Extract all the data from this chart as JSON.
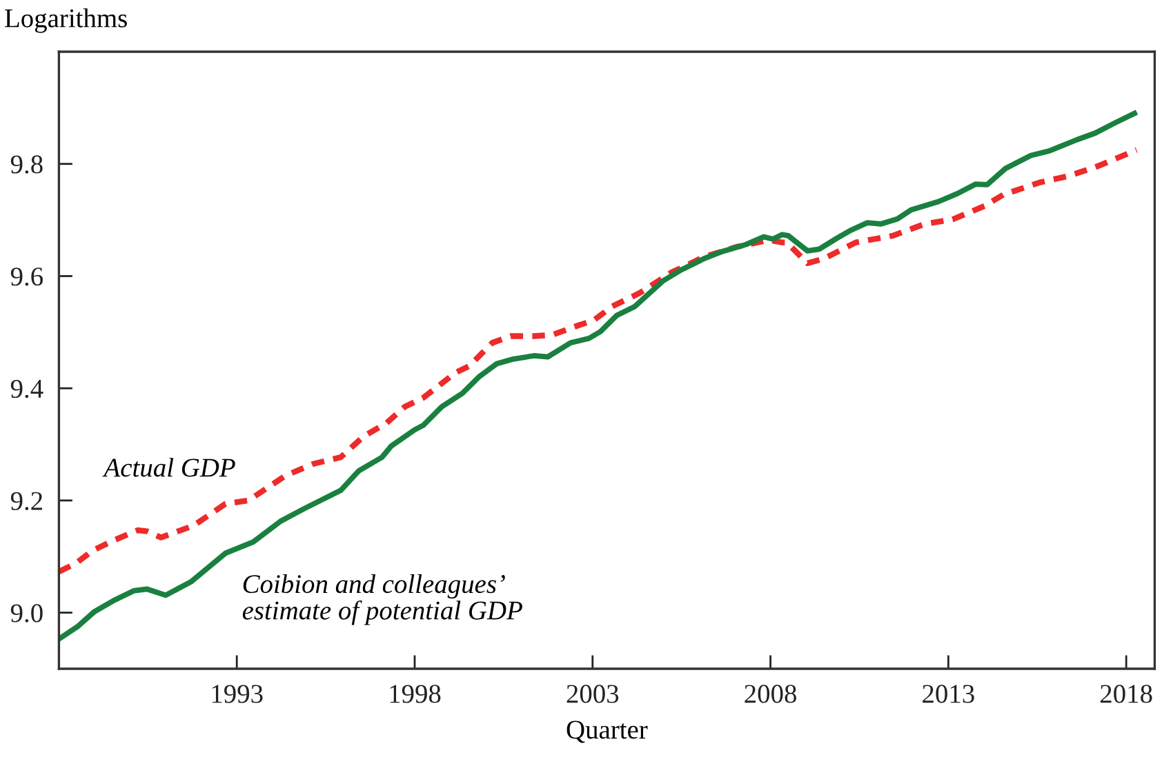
{
  "chart_data": {
    "type": "line",
    "ylabel": "Logarithms",
    "xlabel": "Quarter",
    "xlim": [
      1988,
      2018.8
    ],
    "xticks": [
      1993,
      1998,
      2003,
      2008,
      2013,
      2018
    ],
    "ylim": [
      8.9,
      10.0
    ],
    "yticks": [
      {
        "value": 9.0,
        "label": "9.0"
      },
      9.2,
      9.4,
      9.6,
      9.8
    ],
    "grid": false,
    "legend": false,
    "series": [
      {
        "name": "Actual GDP",
        "color": "#ee2a2a",
        "line_style": "dashed",
        "x": [
          1988.0,
          1988.48,
          1988.93,
          1989.58,
          1990.22,
          1990.48,
          1990.87,
          1991.78,
          1992.68,
          1993.33,
          1994.36,
          1995.14,
          1995.92,
          1996.56,
          1997.21,
          1997.72,
          1998.24,
          1999.15,
          1999.54,
          2000.18,
          2000.7,
          2001.35,
          2001.86,
          2002.64,
          2003.03,
          2003.55,
          2004.33,
          2005.23,
          2006.13,
          2007.04,
          2007.95,
          2008.33,
          2008.46,
          2009.04,
          2009.5,
          2010.4,
          2011.44,
          2012.34,
          2013.12,
          2014.02,
          2014.54,
          2015.57,
          2016.35,
          2017.13,
          2017.77,
          2018.29
        ],
        "values": [
          9.073,
          9.088,
          9.11,
          9.13,
          9.147,
          9.145,
          9.134,
          9.155,
          9.194,
          9.2,
          9.244,
          9.265,
          9.277,
          9.314,
          9.338,
          9.367,
          9.383,
          9.428,
          9.44,
          9.481,
          9.493,
          9.493,
          9.495,
          9.513,
          9.521,
          9.546,
          9.57,
          9.607,
          9.634,
          9.652,
          9.664,
          9.66,
          9.66,
          9.623,
          9.631,
          9.66,
          9.672,
          9.693,
          9.701,
          9.725,
          9.745,
          9.767,
          9.778,
          9.794,
          9.811,
          9.825
        ]
      },
      {
        "name": "Coibion and colleagues’\nestimate of potential GDP",
        "color": "#1a8040",
        "line_style": "solid",
        "x": [
          1988.0,
          1988.54,
          1989.0,
          1989.58,
          1990.1,
          1990.48,
          1991.0,
          1991.71,
          1992.68,
          1993.46,
          1994.23,
          1994.88,
          1995.92,
          1996.43,
          1997.08,
          1997.34,
          1998.0,
          1998.24,
          1998.76,
          1999.34,
          1999.8,
          2000.31,
          2000.77,
          2001.35,
          2001.74,
          2002.38,
          2002.9,
          2003.22,
          2003.68,
          2004.19,
          2004.97,
          2005.49,
          2006.13,
          2006.65,
          2007.3,
          2007.81,
          2008.07,
          2008.33,
          2008.5,
          2009.04,
          2009.37,
          2009.88,
          2010.27,
          2010.72,
          2011.11,
          2011.57,
          2011.95,
          2012.73,
          2013.25,
          2013.77,
          2014.09,
          2014.61,
          2015.32,
          2015.83,
          2016.61,
          2017.13,
          2017.65,
          2018.23
        ],
        "values": [
          8.953,
          8.976,
          9.002,
          9.023,
          9.039,
          9.042,
          9.031,
          9.055,
          9.106,
          9.126,
          9.163,
          9.185,
          9.218,
          9.253,
          9.277,
          9.297,
          9.326,
          9.334,
          9.367,
          9.391,
          9.42,
          9.444,
          9.452,
          9.458,
          9.456,
          9.481,
          9.489,
          9.501,
          9.53,
          9.546,
          9.591,
          9.611,
          9.631,
          9.644,
          9.656,
          9.67,
          9.666,
          9.674,
          9.672,
          9.645,
          9.648,
          9.668,
          9.682,
          9.695,
          9.693,
          9.702,
          9.718,
          9.733,
          9.747,
          9.764,
          9.763,
          9.792,
          9.815,
          9.823,
          9.843,
          9.855,
          9.872,
          9.89
        ]
      }
    ]
  }
}
